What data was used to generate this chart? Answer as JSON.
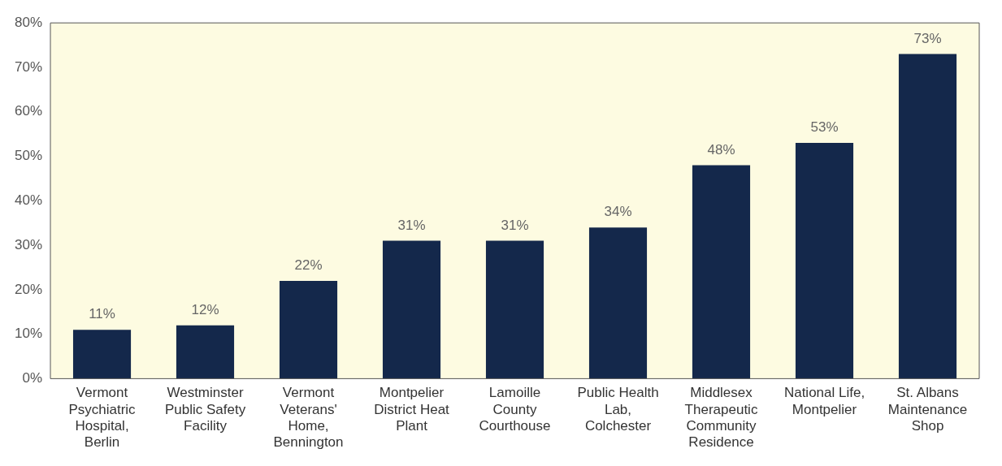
{
  "chart_data": {
    "type": "bar",
    "categories": [
      "Vermont Psychiatric Hospital, Berlin",
      "Westminster Public Safety Facility",
      "Vermont Veterans' Home, Bennington",
      "Montpelier District Heat Plant",
      "Lamoille County Courthouse",
      "Public Health Lab, Colchester",
      "Middlesex Therapeutic Community Residence",
      "National Life, Montpelier",
      "St. Albans Maintenance Shop"
    ],
    "values": [
      11,
      12,
      22,
      31,
      31,
      34,
      48,
      53,
      73
    ],
    "value_labels": [
      "11%",
      "12%",
      "22%",
      "31%",
      "31%",
      "34%",
      "48%",
      "53%",
      "73%"
    ],
    "color": "#14284b",
    "ylim": [
      0,
      80
    ],
    "yticks": [
      {
        "value": 0,
        "label": "0%"
      },
      {
        "value": 10,
        "label": "10%"
      },
      {
        "value": 20,
        "label": "20%"
      },
      {
        "value": 30,
        "label": "30%"
      },
      {
        "value": 40,
        "label": "40%"
      },
      {
        "value": 50,
        "label": "50%"
      },
      {
        "value": 60,
        "label": "60%"
      },
      {
        "value": 70,
        "label": "70%"
      },
      {
        "value": 80,
        "label": "80%"
      }
    ],
    "grid": false,
    "legend": false
  }
}
